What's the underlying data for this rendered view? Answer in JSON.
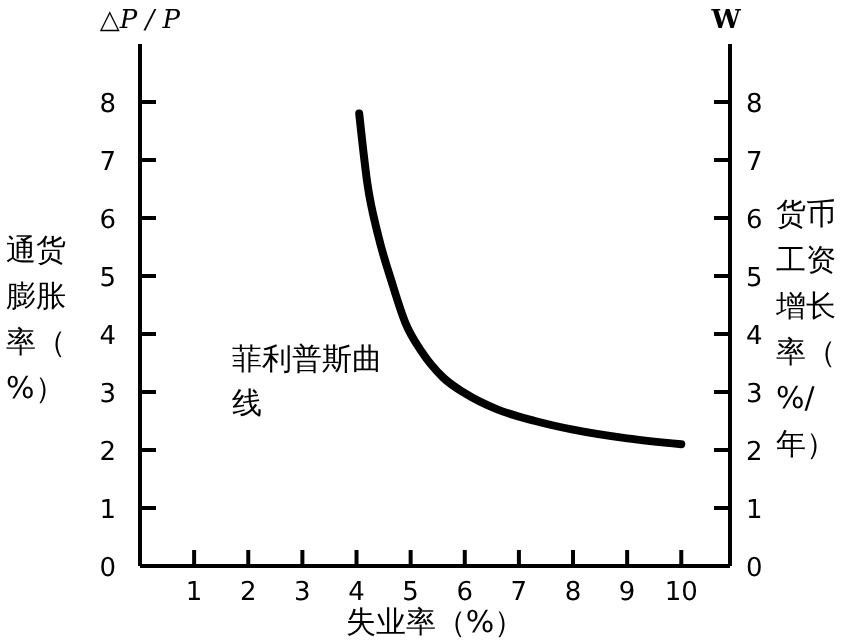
{
  "chart_data": {
    "type": "line",
    "xlabel": "失业率（%）",
    "ylabel": "通货膨胀率（%）",
    "y2label": "货币工资增长率（%/年）",
    "annotations": [
      "△P / P",
      "W",
      "菲利普斯曲线"
    ],
    "x": [
      4.05,
      4.2,
      4.4,
      4.65,
      4.9,
      5.2,
      5.6,
      6.0,
      6.6,
      7.3,
      8,
      9,
      10
    ],
    "series": [
      {
        "color": "#000000",
        "values": [
          7.8,
          6.6,
          5.7,
          4.9,
          4.2,
          3.7,
          3.25,
          2.98,
          2.7,
          2.5,
          2.35,
          2.2,
          2.1
        ]
      }
    ],
    "xlim": [
      0,
      10.9
    ],
    "xticks": [
      1,
      2,
      3,
      4,
      5,
      6,
      7,
      8,
      9,
      10
    ],
    "ylim": [
      0,
      9
    ],
    "yticks": [
      0,
      1,
      2,
      3,
      4,
      5,
      6,
      7,
      8
    ],
    "y2lim": [
      0,
      9
    ],
    "y2ticks": [
      0,
      1,
      2,
      3,
      4,
      5,
      6,
      7,
      8
    ],
    "grid": false
  }
}
